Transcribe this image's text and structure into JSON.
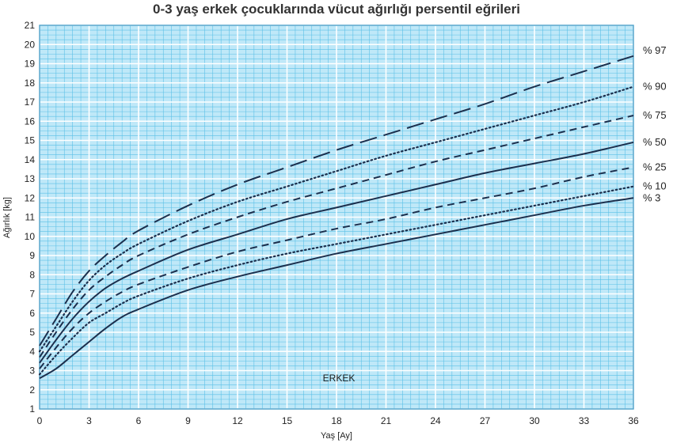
{
  "chart_data": {
    "type": "line",
    "title": "0-3 yaş erkek çocuklarında vücut ağırlığı persentil eğrileri",
    "xlabel": "Yaş [Ay]",
    "ylabel": "Ağırlık [kg]",
    "annotation": "ERKEK",
    "xlim": [
      0,
      36
    ],
    "ylim": [
      1,
      21
    ],
    "xticks": [
      0,
      3,
      6,
      9,
      12,
      15,
      18,
      21,
      24,
      27,
      30,
      33,
      36
    ],
    "yticks": [
      1,
      2,
      3,
      4,
      5,
      6,
      7,
      8,
      9,
      10,
      11,
      12,
      13,
      14,
      15,
      16,
      17,
      18,
      19,
      20,
      21
    ],
    "grid": true,
    "colors": {
      "grid": "#5bc0e6",
      "background": "#bfe8f8",
      "line": "#1b2f4d"
    },
    "x": [
      0,
      1,
      2,
      3,
      4,
      5,
      6,
      9,
      12,
      15,
      18,
      21,
      24,
      27,
      30,
      33,
      36
    ],
    "series": [
      {
        "name": "% 97",
        "dash": "long",
        "values": [
          4.3,
          5.7,
          7.1,
          8.2,
          9.0,
          9.7,
          10.3,
          11.6,
          12.7,
          13.6,
          14.5,
          15.3,
          16.1,
          16.9,
          17.8,
          18.6,
          19.4
        ]
      },
      {
        "name": "% 90",
        "dash": "dot",
        "values": [
          4.0,
          5.3,
          6.6,
          7.7,
          8.5,
          9.1,
          9.6,
          10.8,
          11.8,
          12.6,
          13.4,
          14.2,
          14.9,
          15.6,
          16.3,
          17.0,
          17.8
        ]
      },
      {
        "name": "% 75",
        "dash": "short",
        "values": [
          3.7,
          5.0,
          6.2,
          7.2,
          7.9,
          8.5,
          9.0,
          10.1,
          11.0,
          11.8,
          12.5,
          13.2,
          13.9,
          14.5,
          15.1,
          15.7,
          16.3
        ]
      },
      {
        "name": "% 50",
        "dash": "solid",
        "values": [
          3.4,
          4.6,
          5.7,
          6.6,
          7.3,
          7.8,
          8.2,
          9.3,
          10.1,
          10.9,
          11.5,
          12.1,
          12.7,
          13.3,
          13.8,
          14.3,
          14.9
        ]
      },
      {
        "name": "% 25",
        "dash": "short",
        "values": [
          3.1,
          4.2,
          5.2,
          6.0,
          6.6,
          7.1,
          7.5,
          8.4,
          9.2,
          9.8,
          10.4,
          10.9,
          11.5,
          12.0,
          12.5,
          13.1,
          13.6
        ]
      },
      {
        "name": "% 10",
        "dash": "dot",
        "values": [
          2.8,
          3.8,
          4.7,
          5.5,
          6.0,
          6.5,
          6.9,
          7.8,
          8.5,
          9.1,
          9.6,
          10.1,
          10.6,
          11.1,
          11.6,
          12.1,
          12.6
        ]
      },
      {
        "name": "% 3",
        "dash": "solid",
        "values": [
          2.6,
          3.1,
          3.8,
          4.5,
          5.2,
          5.8,
          6.2,
          7.2,
          7.9,
          8.5,
          9.1,
          9.6,
          10.1,
          10.6,
          11.1,
          11.6,
          12.0
        ]
      }
    ]
  }
}
